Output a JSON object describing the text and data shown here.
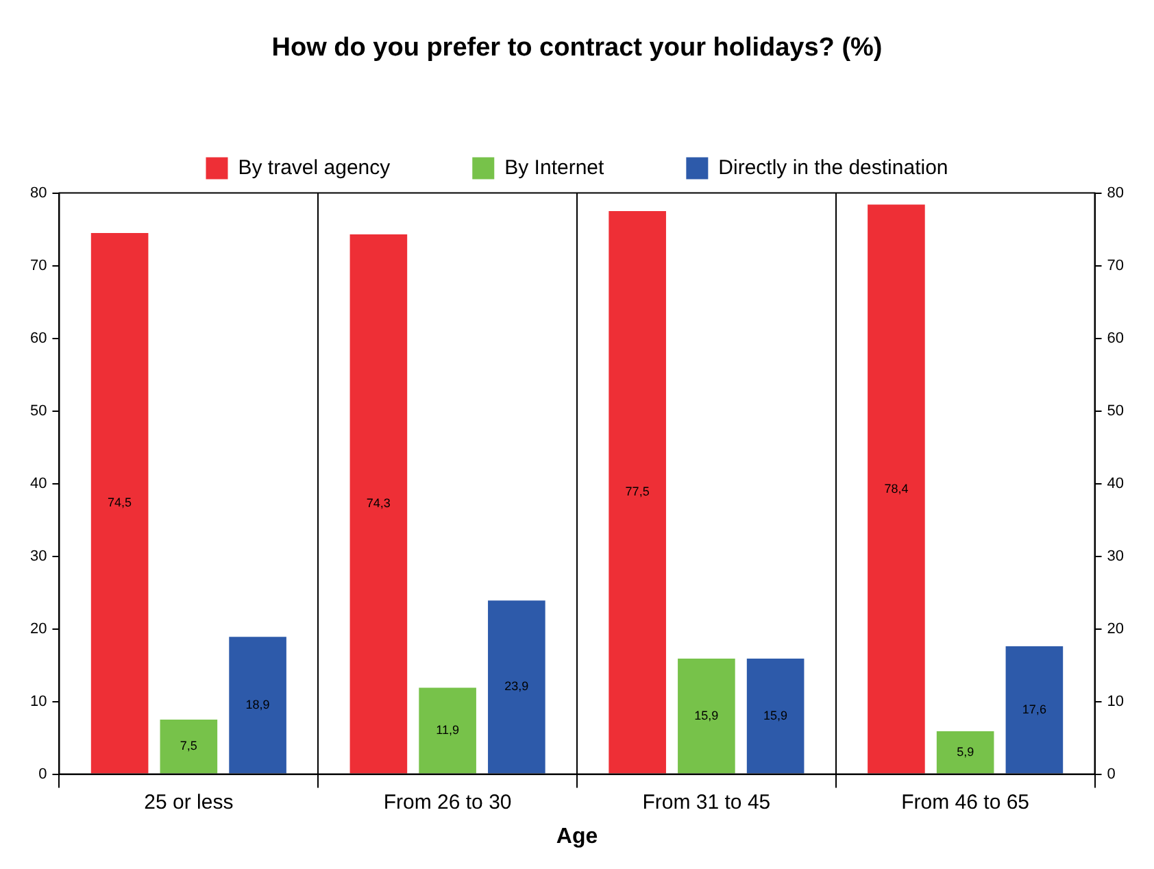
{
  "chart_data": {
    "type": "bar",
    "title": "How do you prefer to contract your holidays? (%)",
    "xlabel": "Age",
    "categories": [
      "25 or less",
      "From 26 to 30",
      "From 31 to 45",
      "From 46 to 65"
    ],
    "series": [
      {
        "name": "By travel agency",
        "color": "#ee2f36",
        "values": [
          74.5,
          74.3,
          77.5,
          78.4
        ],
        "value_labels": [
          "74,5",
          "74,3",
          "77,5",
          "78,4"
        ]
      },
      {
        "name": "By Internet",
        "color": "#77c24a",
        "values": [
          7.5,
          11.9,
          15.9,
          5.9
        ],
        "value_labels": [
          "7,5",
          "11,9",
          "15,9",
          "5,9"
        ]
      },
      {
        "name": "Directly in the destination",
        "color": "#2d5aaa",
        "values": [
          18.9,
          23.9,
          15.9,
          17.6
        ],
        "value_labels": [
          "18,9",
          "23,9",
          "15,9",
          "17,6"
        ]
      }
    ],
    "ylim": [
      0,
      80
    ],
    "yticks": [
      0,
      10,
      20,
      30,
      40,
      50,
      60,
      70,
      80
    ],
    "y2lim": [
      0,
      80
    ],
    "y2ticks": [
      0,
      10,
      20,
      30,
      40,
      50,
      60,
      70,
      80
    ],
    "grid": "x",
    "legend": "top"
  }
}
